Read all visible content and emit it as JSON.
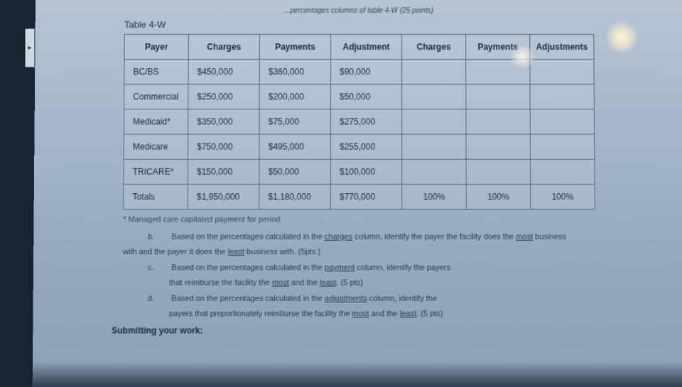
{
  "header_partial": "...percentages columns of table 4-W (25 points)",
  "table_label": "Table 4-W",
  "columns": [
    "Payer",
    "Charges",
    "Payments",
    "Adjustment",
    "Charges",
    "Payments",
    "Adjustments"
  ],
  "rows": [
    {
      "payer": "BC/BS",
      "charges": "$450,000",
      "payments": "$360,000",
      "adjustment": "$90,000",
      "c2": "",
      "p2": "",
      "a2": ""
    },
    {
      "payer": "Commercial",
      "charges": "$250,000",
      "payments": "$200,000",
      "adjustment": "$50,000",
      "c2": "",
      "p2": "",
      "a2": ""
    },
    {
      "payer": "Medicaid*",
      "charges": "$350,000",
      "payments": "$75,000",
      "adjustment": "$275,000",
      "c2": "",
      "p2": "",
      "a2": ""
    },
    {
      "payer": "Medicare",
      "charges": "$750,000",
      "payments": "$495,000",
      "adjustment": "$255,000",
      "c2": "",
      "p2": "",
      "a2": ""
    },
    {
      "payer": "TRICARE*",
      "charges": "$150,000",
      "payments": "$50,000",
      "adjustment": "$100,000",
      "c2": "",
      "p2": "",
      "a2": ""
    },
    {
      "payer": "Totals",
      "charges": "$1,950,000",
      "payments": "$1,180,000",
      "adjustment": "$770,000",
      "c2": "100%",
      "p2": "100%",
      "a2": "100%"
    }
  ],
  "footnote": "* Managed care capitated payment for period",
  "q_b_letter": "b.",
  "q_b_pre": "Based on the percentages calculated in the ",
  "q_b_u": "charges",
  "q_b_post": " column, identify the payer the facility does the ",
  "q_b_u2": "most",
  "q_b_post2": " business",
  "q_b_line2_pre": "with and the payer it does the ",
  "q_b_line2_u": "least",
  "q_b_line2_post": " business with. (5pts.)",
  "q_c_letter": "c.",
  "q_c_pre": "Based on the percentages calculated in the ",
  "q_c_u": "payment",
  "q_c_post": " column, identify the payers",
  "q_c_line2_pre": "that reimburse the facility the ",
  "q_c_line2_u1": "most",
  "q_c_line2_mid": " and the ",
  "q_c_line2_u2": "least",
  "q_c_line2_post": ". (5 pts)",
  "q_d_letter": "d.",
  "q_d_pre": "Based on the percentages calculated in the ",
  "q_d_u": "adjustments",
  "q_d_post": " column, identify the",
  "q_d_line2_pre": "payers that proportionately reimburse the facility the ",
  "q_d_line2_u1": "most",
  "q_d_line2_mid": " and the ",
  "q_d_line2_u2": "least",
  "q_d_line2_post": ". (5 pts)",
  "submit_label": "Submitting your work:",
  "arrow": "▸"
}
